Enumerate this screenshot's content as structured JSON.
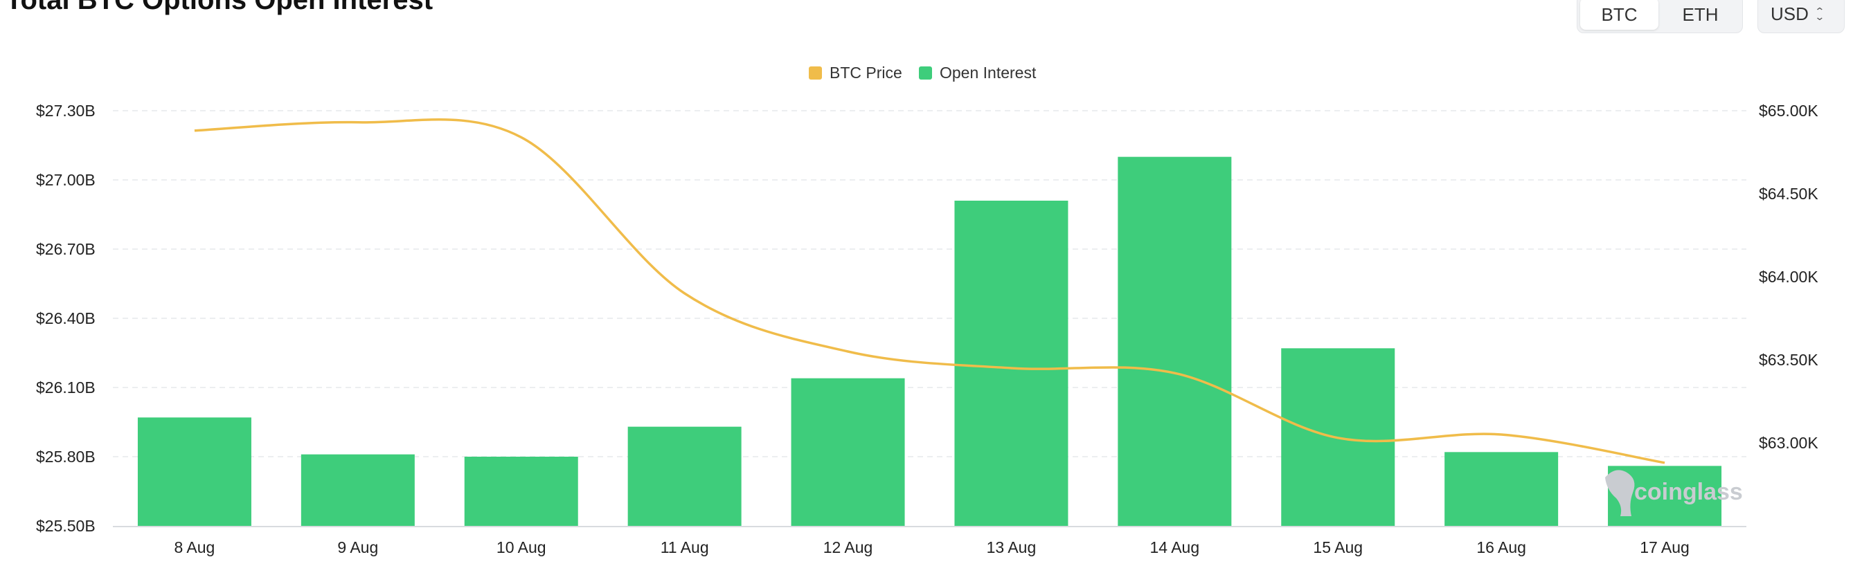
{
  "page": {
    "title": "Total BTC Options Open Interest"
  },
  "controls": {
    "asset_tabs": [
      {
        "label": "BTC",
        "active": true
      },
      {
        "label": "ETH",
        "active": false
      }
    ],
    "currency": {
      "selected": "USD",
      "icon": "chevron-updown-icon"
    }
  },
  "watermark": {
    "text": "coinglass",
    "icon": "coinglass-logo-icon"
  },
  "colors": {
    "open_interest": "#3ecd7b",
    "btc_price": "#f0bc4a",
    "grid": "#e6e8eb"
  },
  "chart_data": {
    "type": "bar",
    "categories": [
      "8 Aug",
      "9 Aug",
      "10 Aug",
      "11 Aug",
      "12 Aug",
      "13 Aug",
      "14 Aug",
      "15 Aug",
      "16 Aug",
      "17 Aug"
    ],
    "series": [
      {
        "name": "Open Interest",
        "type": "bar",
        "axis": "left",
        "values": [
          25.97,
          25.81,
          25.8,
          25.93,
          26.14,
          26.91,
          27.1,
          26.27,
          25.82,
          25.76
        ]
      },
      {
        "name": "BTC Price",
        "type": "line",
        "axis": "right",
        "smooth": true,
        "values": [
          64880,
          64930,
          64840,
          63900,
          63550,
          63450,
          63420,
          63030,
          63050,
          62880
        ]
      }
    ],
    "y_left": {
      "range": [
        25.5,
        27.3
      ],
      "ticks": [
        25.5,
        25.8,
        26.1,
        26.4,
        26.7,
        27.0,
        27.3
      ],
      "tick_labels": [
        "$25.50B",
        "$25.80B",
        "$26.10B",
        "$26.40B",
        "$26.70B",
        "$27.00B",
        "$27.30B"
      ]
    },
    "y_right": {
      "range": [
        62500,
        65000
      ],
      "ticks": [
        63000,
        63500,
        64000,
        64500,
        65000
      ],
      "tick_labels": [
        "$63.00K",
        "$63.50K",
        "$64.00K",
        "$64.50K",
        "$65.00K"
      ]
    },
    "legend": {
      "position": "top-center",
      "entries": [
        "BTC Price",
        "Open Interest"
      ]
    },
    "grid": true,
    "title": "",
    "xlabel": "",
    "ylabel": ""
  }
}
